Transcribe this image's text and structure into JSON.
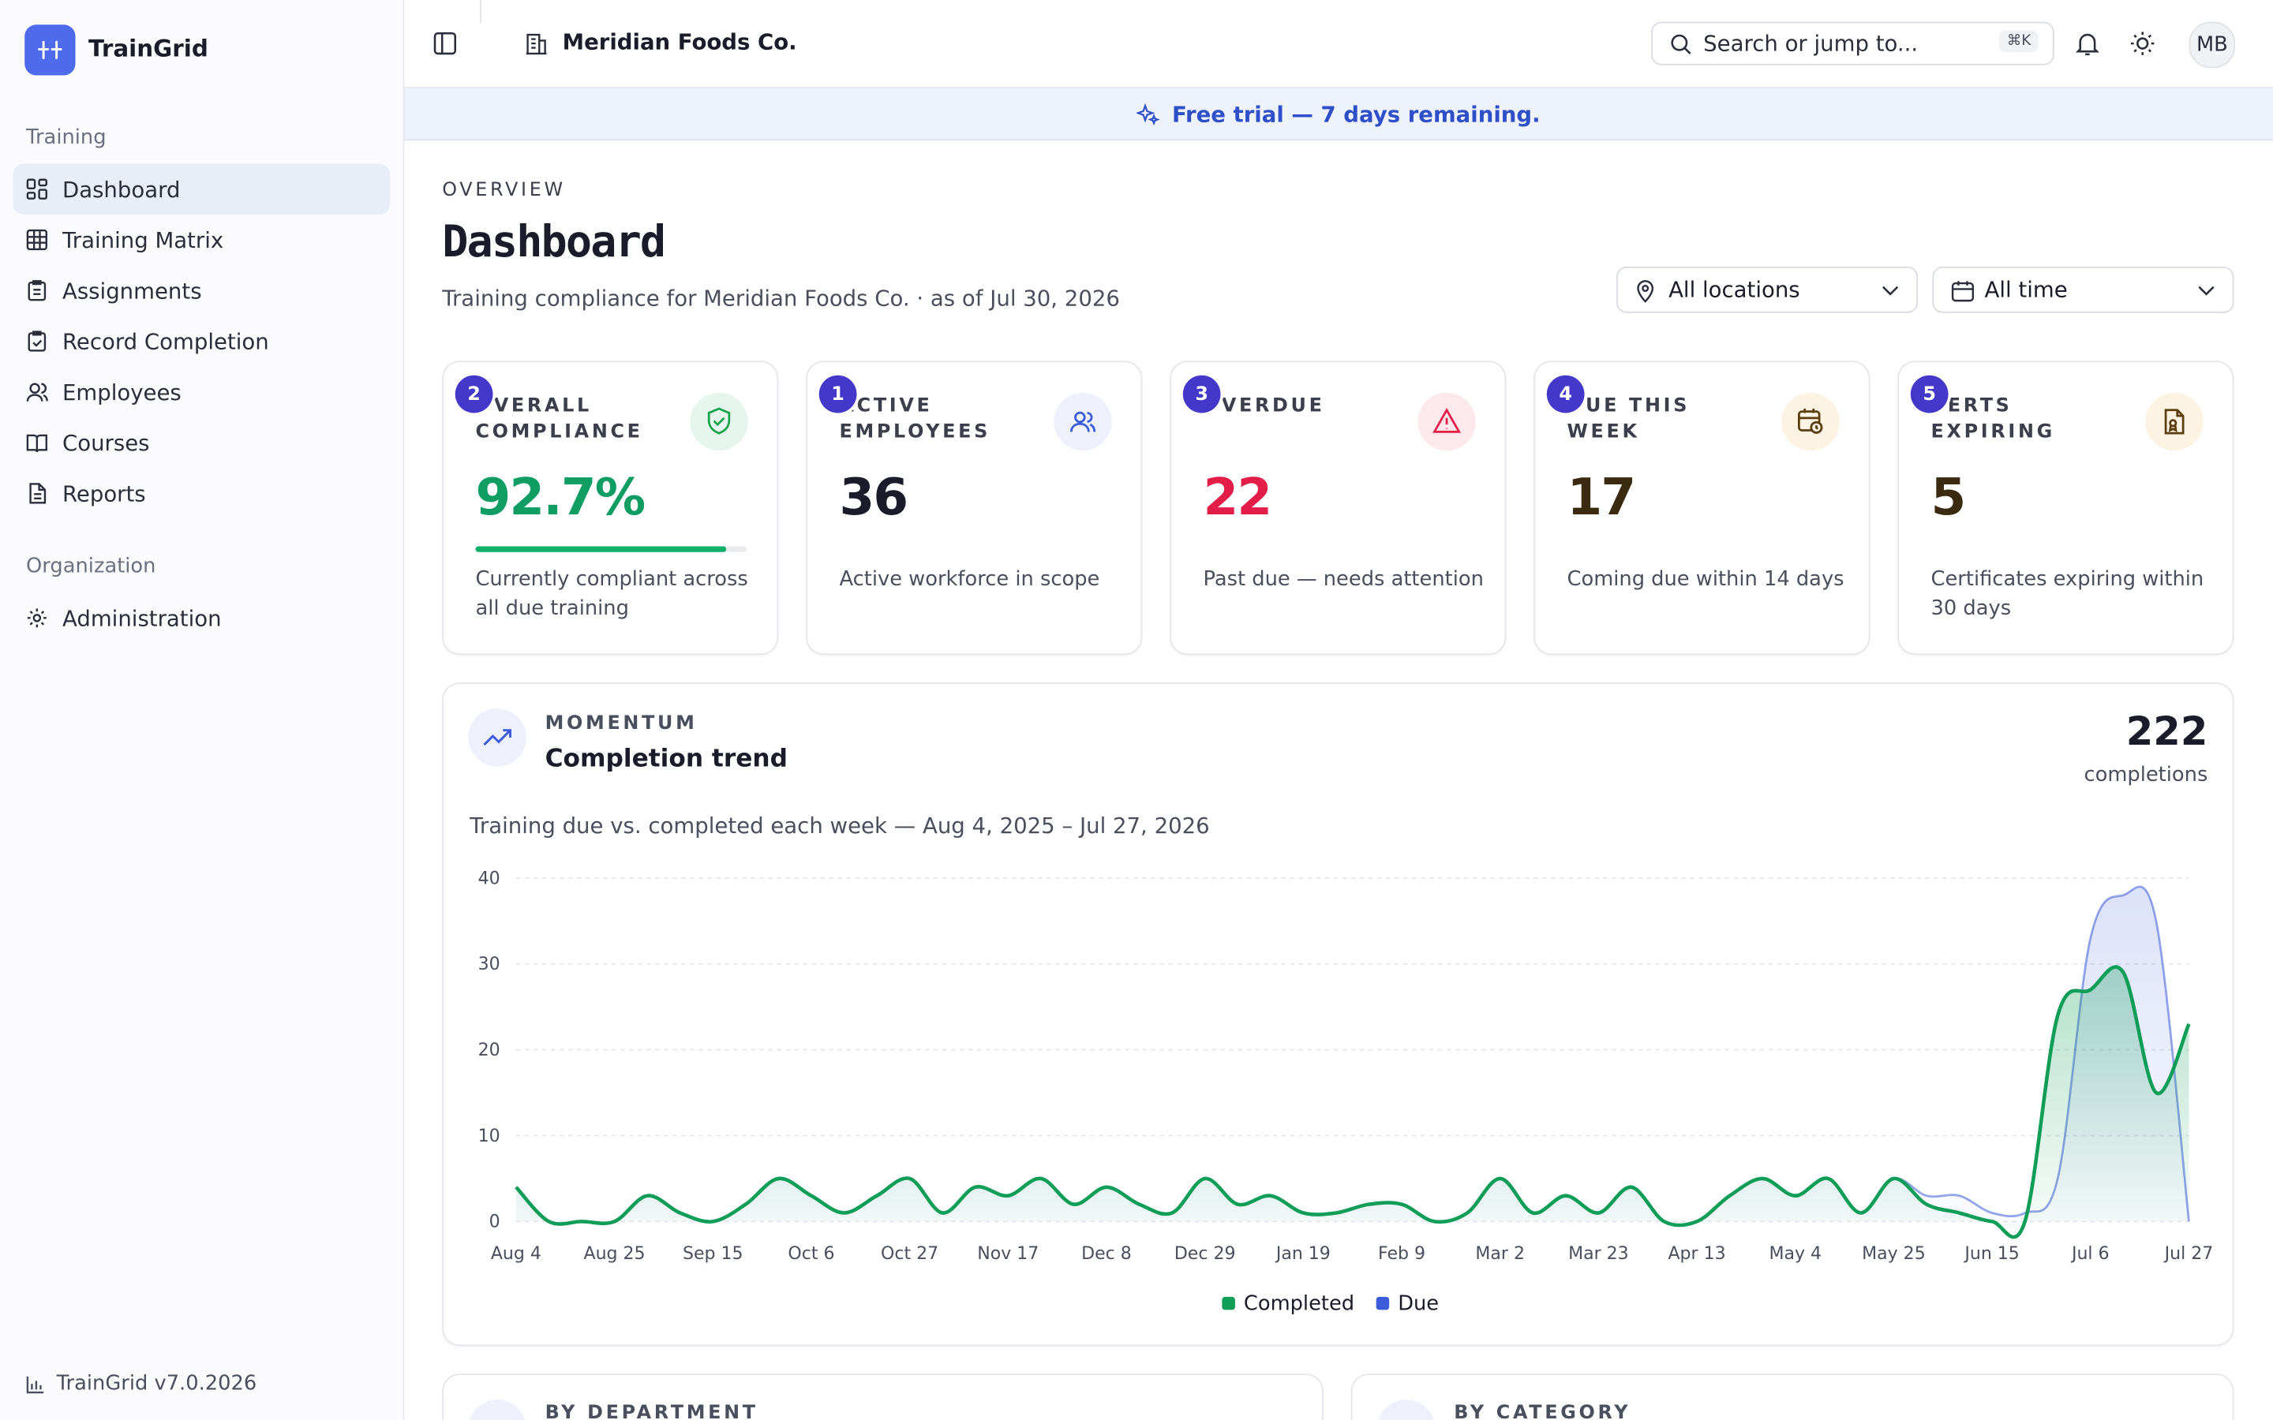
{
  "sidebar": {
    "brand": "TrainGrid",
    "sections": [
      {
        "title": "Training",
        "items": [
          "Dashboard",
          "Training Matrix",
          "Assignments",
          "Record Completion",
          "Employees",
          "Courses",
          "Reports"
        ]
      },
      {
        "title": "Organization",
        "items": [
          "Administration"
        ]
      }
    ],
    "version": "TrainGrid v7.0.2026"
  },
  "topbar": {
    "org": "Meridian Foods Co.",
    "search": "Search or jump to...",
    "shortcut": "⌘K",
    "avatar": "MB"
  },
  "banner": "Free trial — 7 days remaining.",
  "header": {
    "eyebrow": "OVERVIEW",
    "title": "Dashboard",
    "subtitle": "Training compliance for Meridian Foods Co. · as of Jul 30, 2026",
    "filters": [
      "All locations",
      "All time"
    ]
  },
  "kpis": [
    {
      "badge": "2",
      "label": "OVERALL COMPLIANCE",
      "value": "92.7%",
      "progress": 92.7,
      "note": "Currently compliant across all due training"
    },
    {
      "badge": "1",
      "label": "ACTIVE EMPLOYEES",
      "value": "36",
      "note": "Active workforce in scope"
    },
    {
      "badge": "3",
      "label": "OVERDUE",
      "value": "22",
      "note": "Past due — needs attention"
    },
    {
      "badge": "4",
      "label": "DUE THIS WEEK",
      "value": "17",
      "note": "Coming due within 14 days"
    },
    {
      "badge": "5",
      "label": "CERTS EXPIRING",
      "value": "5",
      "note": "Certificates expiring within 30 days"
    }
  ],
  "trend": {
    "eyebrow": "MOMENTUM",
    "title": "Completion trend",
    "total": "222",
    "total_label": "completions"
  },
  "chart_data": {
    "type": "line",
    "subtitle": "Training due vs. completed each week — Aug 4, 2025 – Jul 27, 2026",
    "categories": [
      "Aug 4",
      null,
      null,
      "Aug 25",
      null,
      null,
      "Sep 15",
      null,
      null,
      "Oct 6",
      null,
      null,
      "Oct 27",
      null,
      null,
      "Nov 17",
      null,
      null,
      "Dec 8",
      null,
      null,
      "Dec 29",
      null,
      null,
      "Jan 19",
      null,
      null,
      "Feb 9",
      null,
      null,
      "Mar 2",
      null,
      null,
      "Mar 23",
      null,
      null,
      "Apr 13",
      null,
      null,
      "May 4",
      null,
      null,
      "May 25",
      null,
      null,
      "Jun 15",
      null,
      null,
      "Jul 6",
      null,
      null,
      "Jul 27"
    ],
    "series": [
      {
        "name": "Due",
        "color": "#3b5bdb",
        "values": [
          4,
          0,
          0,
          0,
          3,
          1,
          0,
          2,
          5,
          3,
          1,
          3,
          5,
          1,
          4,
          3,
          5,
          2,
          4,
          2,
          1,
          5,
          2,
          3,
          1,
          1,
          2,
          2,
          0,
          1,
          5,
          1,
          3,
          1,
          4,
          0,
          0,
          3,
          5,
          3,
          5,
          1,
          5,
          3,
          3,
          1,
          1,
          5,
          33,
          38,
          35,
          0
        ]
      },
      {
        "name": "Completed",
        "color": "#0f9d58",
        "values": [
          4,
          0,
          0,
          0,
          3,
          1,
          0,
          2,
          5,
          3,
          1,
          3,
          5,
          1,
          4,
          3,
          5,
          2,
          4,
          2,
          1,
          5,
          2,
          3,
          1,
          1,
          2,
          2,
          0,
          1,
          5,
          1,
          3,
          1,
          4,
          0,
          0,
          3,
          5,
          3,
          5,
          1,
          5,
          2,
          1,
          0,
          0,
          24,
          27,
          29,
          15,
          23
        ]
      }
    ],
    "legend_order": [
      "Completed",
      "Due"
    ],
    "ylim": [
      0,
      40
    ],
    "yticks": [
      0,
      10,
      20,
      30,
      40
    ],
    "grid": true
  }
}
